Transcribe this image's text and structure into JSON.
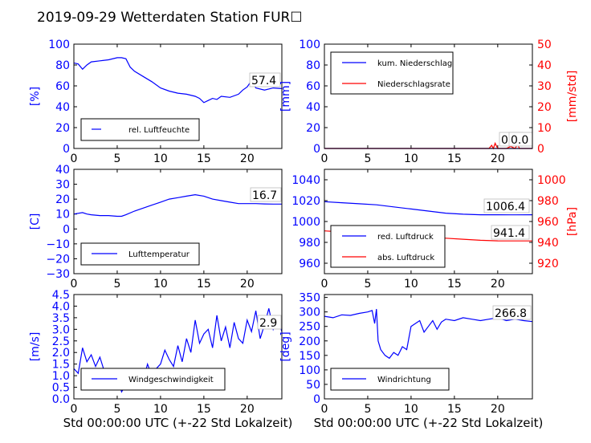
{
  "title": "2019-09-29 Wetterdaten Station FUR☐",
  "colors": {
    "blue": "#0000ff",
    "red": "#ff0000",
    "light": "#9090ff"
  },
  "chart_data": [
    {
      "type": "line",
      "ylabel": "[%]",
      "ylim": [
        0,
        100
      ],
      "yticks": [
        "0",
        "20",
        "40",
        "60",
        "80",
        "100"
      ],
      "xlim": [
        0,
        24
      ],
      "xticks": [
        "0",
        "5",
        "10",
        "15",
        "20"
      ],
      "legend_placement": "lower-left",
      "annotation": "57.4",
      "series": [
        {
          "name": "rel. Luftfeuchte",
          "color": "#0000ff",
          "x": [
            0,
            0.5,
            1,
            1.5,
            2,
            3,
            4,
            5,
            5.5,
            6,
            6.5,
            7,
            8,
            9,
            10,
            11,
            12,
            13,
            14,
            14.5,
            15,
            15.5,
            16,
            16.5,
            17,
            18,
            19,
            19.5,
            20,
            20.5,
            21,
            22,
            23,
            24
          ],
          "y": [
            82,
            81,
            76,
            80,
            83,
            84,
            85,
            87,
            87,
            86,
            78,
            74,
            69,
            64,
            58,
            55,
            53,
            52,
            50,
            48,
            44,
            46,
            48,
            47,
            50,
            49,
            52,
            56,
            59,
            65,
            58,
            56,
            58,
            57.4
          ]
        }
      ]
    },
    {
      "type": "line",
      "ylabel": "[mm]",
      "ylabel_right": "[mm/std]",
      "ylim": [
        0,
        100
      ],
      "ylim_right": [
        0,
        50
      ],
      "yticks": [
        "0",
        "20",
        "40",
        "60",
        "80",
        "100"
      ],
      "yticks_right": [
        "0",
        "10",
        "20",
        "30",
        "40",
        "50"
      ],
      "xlim": [
        0,
        24
      ],
      "xticks": [
        "0",
        "5",
        "10",
        "15",
        "20"
      ],
      "legend_placement": "top-left",
      "annotation": "0.0",
      "annotation2": "0.0",
      "series": [
        {
          "name": "kum. Niederschlag",
          "color": "#0000ff",
          "x": [
            0,
            24
          ],
          "y": [
            0,
            0
          ]
        },
        {
          "name": "Niederschlagsrate",
          "color": "#ff0000",
          "axis": "right",
          "x": [
            0,
            19,
            19.3,
            19.5,
            19.7,
            20,
            21,
            21.5,
            22,
            22.3,
            22.5,
            24
          ],
          "y": [
            0,
            0,
            1.5,
            0,
            2.5,
            0,
            0,
            1,
            0,
            2,
            0,
            0
          ]
        }
      ]
    },
    {
      "type": "line",
      "ylabel": "[C]",
      "ylim": [
        -30,
        40
      ],
      "yticks": [
        "−30",
        "−20",
        "−10",
        "0",
        "10",
        "20",
        "30",
        "40"
      ],
      "xlim": [
        0,
        24
      ],
      "xticks": [
        "0",
        "5",
        "10",
        "15",
        "20"
      ],
      "legend_placement": "lower-left",
      "annotation": "16.7",
      "series": [
        {
          "name": "Lufttemperatur",
          "color": "#0000ff",
          "x": [
            0,
            1,
            1.5,
            2,
            3,
            4,
            5,
            5.5,
            6,
            7,
            8,
            9,
            10,
            11,
            12,
            13,
            14,
            15,
            16,
            17,
            18,
            19,
            20,
            21,
            22,
            23,
            24
          ],
          "y": [
            10,
            11,
            10,
            9.5,
            9,
            9,
            8.5,
            8.5,
            9.5,
            12,
            14,
            16,
            18,
            20,
            21,
            22,
            23,
            22,
            20,
            19,
            18,
            17,
            17,
            17,
            16.8,
            16.7,
            16.7
          ]
        }
      ]
    },
    {
      "type": "line",
      "ylabel": "",
      "ylabel_right": "[hPa]",
      "ylim": [
        950,
        1050
      ],
      "ylim_right": [
        910,
        1010
      ],
      "yticks": [
        "960",
        "980",
        "1000",
        "1020",
        "1040"
      ],
      "yticks_right": [
        "920",
        "940",
        "960",
        "980",
        "1000"
      ],
      "xlim": [
        0,
        24
      ],
      "xticks": [
        "0",
        "5",
        "10",
        "15",
        "20"
      ],
      "legend_placement": "lower-left",
      "annotation": "1006.4",
      "annotation2": "941.4",
      "series": [
        {
          "name": "red. Luftdruck",
          "color": "#0000ff",
          "x": [
            0,
            2,
            4,
            6,
            8,
            10,
            12,
            14,
            16,
            18,
            20,
            22,
            24
          ],
          "y": [
            1019,
            1018,
            1017,
            1016,
            1014,
            1012,
            1010,
            1008,
            1007,
            1006.5,
            1006.5,
            1006.4,
            1006.5
          ]
        },
        {
          "name": "abs. Luftdruck",
          "color": "#ff0000",
          "axis": "right",
          "x": [
            0,
            2,
            4,
            6,
            8,
            10,
            12,
            14,
            16,
            18,
            20,
            22,
            24
          ],
          "y": [
            951,
            950,
            949,
            948.5,
            947.5,
            946,
            945,
            944,
            943,
            942,
            941.5,
            941.4,
            941.4
          ]
        }
      ]
    },
    {
      "type": "line",
      "ylabel": "[m/s]",
      "xlabel": "Std 00:00:00 UTC (+-22 Std Lokalzeit)",
      "ylim": [
        0,
        4.5
      ],
      "yticks": [
        "0.0",
        "0.5",
        "1.0",
        "1.5",
        "2.0",
        "2.5",
        "3.0",
        "3.5",
        "4.0",
        "4.5"
      ],
      "xlim": [
        0,
        24
      ],
      "xticks": [
        "0",
        "5",
        "10",
        "15",
        "20"
      ],
      "legend_placement": "lower-left",
      "annotation": "2.9",
      "series": [
        {
          "name": "Windgeschwindigkeit",
          "color": "#0000ff",
          "x": [
            0,
            0.5,
            1,
            1.5,
            2,
            2.5,
            3,
            3.5,
            4,
            4.5,
            5,
            5.5,
            6,
            6.5,
            7,
            7.5,
            8,
            8.5,
            9,
            9.5,
            10,
            10.5,
            11,
            11.5,
            12,
            12.5,
            13,
            13.5,
            14,
            14.5,
            15,
            15.5,
            16,
            16.5,
            17,
            17.5,
            18,
            18.5,
            19,
            19.5,
            20,
            20.5,
            21,
            21.5,
            22,
            22.5,
            23,
            23.5,
            24
          ],
          "y": [
            1.3,
            1.1,
            2.2,
            1.6,
            1.9,
            1.4,
            1.8,
            1.2,
            1.3,
            0.9,
            1.0,
            0.3,
            0.6,
            1.0,
            0.5,
            1.2,
            0.8,
            1.5,
            1.0,
            1.3,
            1.5,
            2.1,
            1.7,
            1.4,
            2.3,
            1.6,
            2.6,
            2.0,
            3.4,
            2.4,
            2.8,
            3.0,
            2.2,
            3.6,
            2.5,
            3.1,
            2.2,
            3.3,
            2.6,
            2.4,
            3.4,
            2.9,
            3.8,
            2.6,
            3.2,
            3.9,
            3.0,
            3.5,
            2.9
          ]
        }
      ]
    },
    {
      "type": "line",
      "ylabel": "[deg]",
      "xlabel": "Std 00:00:00 UTC (+-22 Std Lokalzeit)",
      "ylim": [
        0,
        360
      ],
      "yticks": [
        "0",
        "50",
        "100",
        "150",
        "200",
        "250",
        "300",
        "350"
      ],
      "xlim": [
        0,
        24
      ],
      "xticks": [
        "0",
        "5",
        "10",
        "15",
        "20"
      ],
      "legend_placement": "lower-left",
      "annotation": "266.8",
      "series": [
        {
          "name": "Windrichtung",
          "color": "#0000ff",
          "x": [
            0,
            1,
            2,
            3,
            4,
            5,
            5.5,
            5.8,
            6,
            6.2,
            6.5,
            7,
            7.5,
            8,
            8.5,
            9,
            9.5,
            10,
            10.5,
            11,
            11.5,
            12,
            12.5,
            13,
            13.5,
            14,
            15,
            16,
            17,
            18,
            19,
            20,
            21,
            22,
            23,
            24
          ],
          "y": [
            285,
            280,
            290,
            288,
            295,
            300,
            305,
            260,
            310,
            200,
            170,
            150,
            140,
            160,
            150,
            180,
            170,
            250,
            260,
            270,
            230,
            250,
            270,
            240,
            265,
            275,
            270,
            280,
            275,
            270,
            275,
            280,
            270,
            275,
            270,
            266.8
          ]
        }
      ]
    }
  ]
}
